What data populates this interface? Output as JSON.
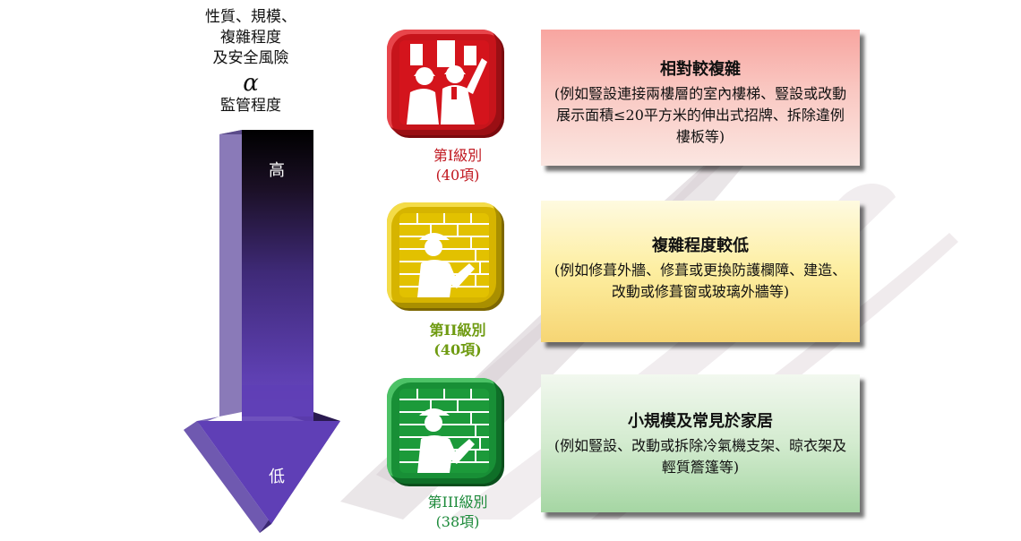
{
  "header": {
    "line1": "性質、規模、",
    "line2": "複雜程度",
    "line3": "及安全風險",
    "alpha": "α",
    "line4": "監管程度"
  },
  "arrow": {
    "top_label": "高",
    "bottom_label": "低"
  },
  "levels": [
    {
      "name": "第I級別",
      "count": "(40項)",
      "color": "#d4141c",
      "text_color": "#c0161e",
      "title": "相對較複雜",
      "description": "(例如豎設連接兩樓層的室內樓梯、豎設或改動展示面積≤20平方米的伸出式招牌、拆除違例樓板等)",
      "panel_top_color": "#f7a9a3",
      "panel_bottom_color": "#fbe1dc"
    },
    {
      "name": "第II級別",
      "count": "(40項)",
      "color": "#e2c100",
      "text_color": "#6f9b12",
      "title": "複雜程度較低",
      "description": "(例如修葺外牆、修葺或更換防護欄障、建造、改動或修葺窗或玻璃外牆等)",
      "panel_top_color": "#fdf6c0",
      "panel_bottom_color": "#f7d77a"
    },
    {
      "name": "第III級別",
      "count": "(38項)",
      "color": "#1c9a3a",
      "text_color": "#1c8a3a",
      "title": "小規模及常見於家居",
      "description": "(例如豎設、改動或拆除冷氣機支架、晾衣架及輕質簷篷等)",
      "panel_top_color": "#f0f7ee",
      "panel_bottom_color": "#a8d8a6"
    }
  ]
}
